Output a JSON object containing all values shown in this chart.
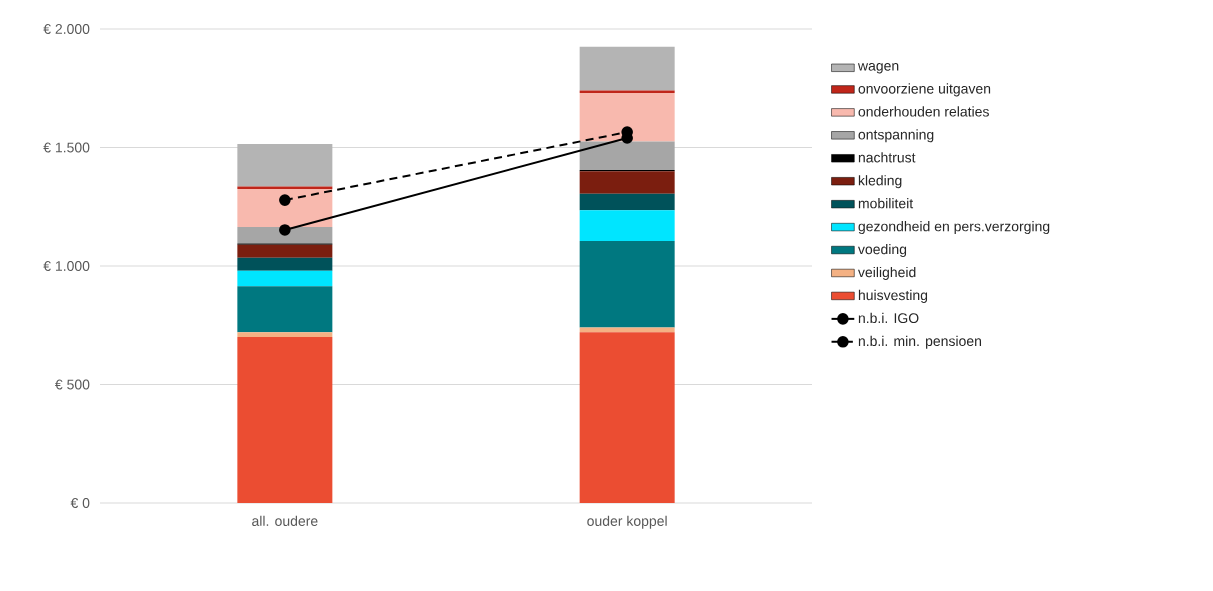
{
  "chart_data": {
    "type": "bar",
    "stacked": true,
    "categories": [
      "all. oudere",
      "ouder koppel"
    ],
    "series": [
      {
        "name": "huisvesting",
        "color": "#eb4d32",
        "values": [
          700,
          720
        ]
      },
      {
        "name": "veiligheid",
        "color": "#f4b183",
        "values": [
          20,
          20
        ]
      },
      {
        "name": "voeding",
        "color": "#007880",
        "values": [
          195,
          365
        ]
      },
      {
        "name": "gezondheid en pers.verzorging",
        "color": "#00e5ff",
        "values": [
          65,
          130
        ]
      },
      {
        "name": "mobiliteit",
        "color": "#00525a",
        "values": [
          55,
          70
        ]
      },
      {
        "name": "kleding",
        "color": "#7b1e0f",
        "values": [
          55,
          95
        ]
      },
      {
        "name": "nachtrust",
        "color": "#000000",
        "values": [
          5,
          5
        ]
      },
      {
        "name": "ontspanning",
        "color": "#a6a6a6",
        "values": [
          70,
          120
        ]
      },
      {
        "name": "onderhouden relaties",
        "color": "#f8b9ae",
        "values": [
          160,
          205
        ]
      },
      {
        "name": "onvoorziene uitgaven",
        "color": "#c0261a",
        "values": [
          10,
          10
        ]
      },
      {
        "name": "wagen",
        "color": "#b4b4b4",
        "values": [
          180,
          185
        ]
      },
      {
        "name": "n.b.i. IGO",
        "type": "line",
        "color": "#000000",
        "marker": "circle",
        "line_style": "solid",
        "values": [
          1152,
          1540
        ]
      },
      {
        "name": "n.b.i. min. pensioen",
        "type": "line",
        "color": "#000000",
        "marker": "circle",
        "line_style": "dashed",
        "values": [
          1278,
          1565
        ]
      }
    ],
    "ylim": [
      0,
      2000
    ],
    "yticks": [
      {
        "value": 0,
        "label": "€ 0"
      },
      {
        "value": 500,
        "label": "€ 500"
      },
      {
        "value": 1000,
        "label": "€ 1.000"
      },
      {
        "value": 1500,
        "label": "€ 1.500"
      },
      {
        "value": 2000,
        "label": "€ 2.000"
      }
    ],
    "grid": "y",
    "legend": "right"
  }
}
